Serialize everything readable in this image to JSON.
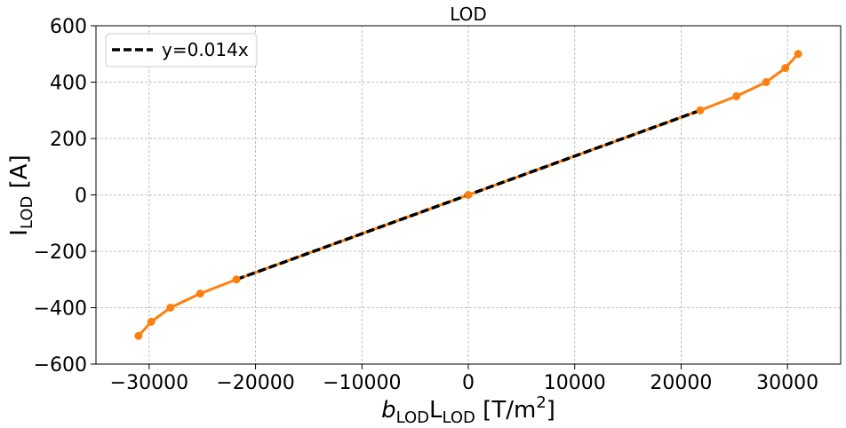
{
  "chart_data": {
    "type": "line",
    "title": "LOD",
    "xlabel": {
      "italic": "b",
      "italic_sub": "LOD",
      "main": "L",
      "main_sub": "LOD",
      "unit_open": " [T/m",
      "unit_sup": "2",
      "unit_close": "]"
    },
    "ylabel": {
      "main": "I",
      "sub": "LOD",
      "unit": " [A]"
    },
    "xlim": [
      -35000,
      35000
    ],
    "ylim": [
      -600,
      600
    ],
    "x_ticks": [
      -30000,
      -20000,
      -10000,
      0,
      10000,
      20000,
      30000
    ],
    "x_tick_labels": [
      "−30000",
      "−20000",
      "−10000",
      "0",
      "10000",
      "20000",
      "30000"
    ],
    "y_ticks": [
      -600,
      -400,
      -200,
      0,
      200,
      400,
      600
    ],
    "y_tick_labels": [
      "−600",
      "−400",
      "−200",
      "0",
      "200",
      "400",
      "600"
    ],
    "grid": true,
    "legend_position": "top-left",
    "series": [
      {
        "kind": "measured",
        "color": "#ff7f0e",
        "x": [
          -31000,
          -29800,
          -28000,
          -25200,
          -21800,
          0,
          21800,
          25200,
          28000,
          29800,
          31000
        ],
        "y": [
          -500,
          -450,
          -400,
          -350,
          -300,
          0,
          300,
          350,
          400,
          450,
          500
        ]
      },
      {
        "kind": "fit",
        "name": "y=0.014x",
        "color": "#000000",
        "dashed": true,
        "x": [
          -21800,
          21800
        ],
        "y": [
          -300,
          300
        ]
      }
    ]
  }
}
